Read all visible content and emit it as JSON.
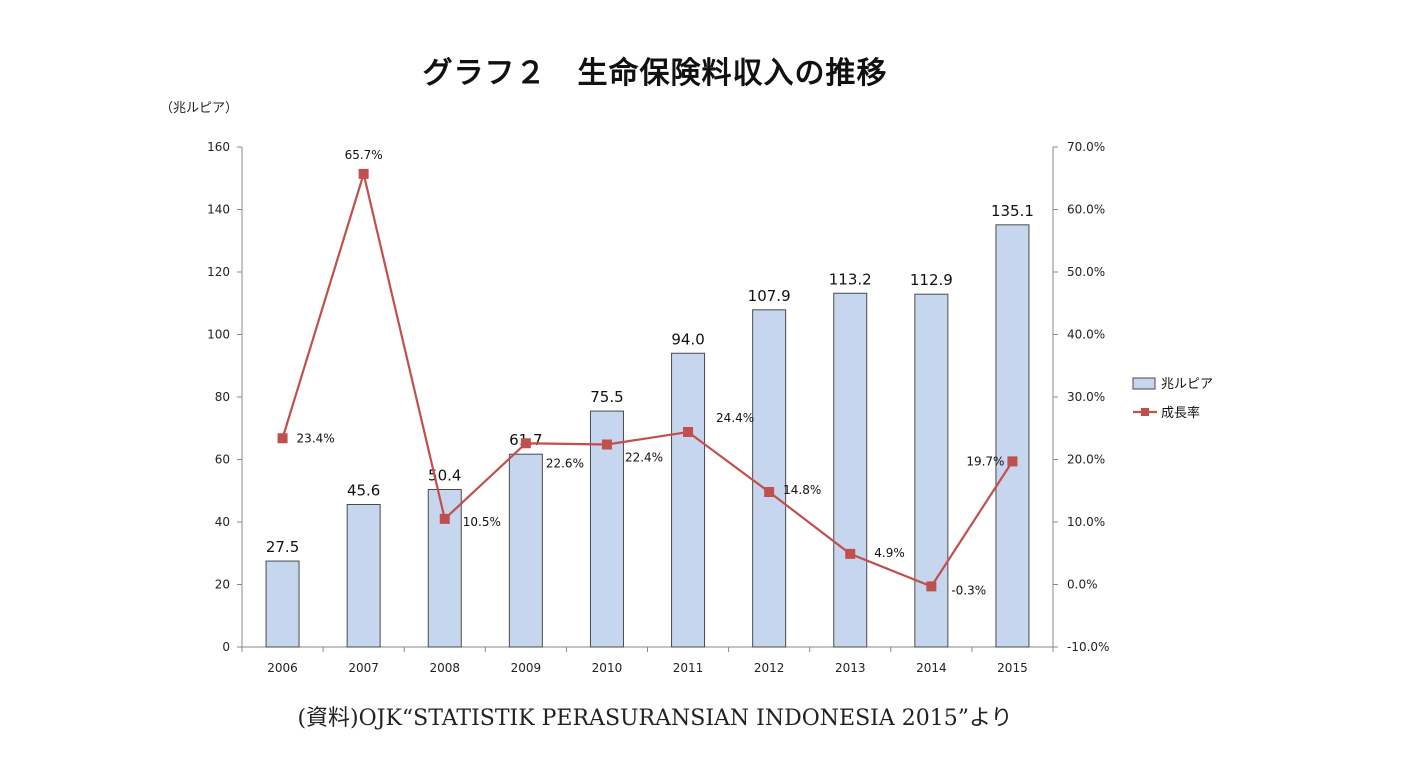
{
  "title": "グラフ２　生命保険料収入の推移",
  "unit_label": "（兆ルピア）",
  "source": "(資料)OJK“STATISTIK PERASURANSIAN INDONESIA 2015”より",
  "chart_data": {
    "type": "bar",
    "categories": [
      "2006",
      "2007",
      "2008",
      "2009",
      "2010",
      "2011",
      "2012",
      "2013",
      "2014",
      "2015"
    ],
    "series": [
      {
        "name": "兆ルピア",
        "type": "bar",
        "axis": "left",
        "color": "#c6d6ef",
        "edge": "#4a4a4a",
        "values": [
          27.5,
          45.6,
          50.4,
          61.7,
          75.5,
          94.0,
          107.9,
          113.2,
          112.9,
          135.1
        ],
        "labels": [
          "27.5",
          "45.6",
          "50.4",
          "61.7",
          "75.5",
          "94.0",
          "107.9",
          "113.2",
          "112.9",
          "135.1"
        ]
      },
      {
        "name": "成長率",
        "type": "line",
        "axis": "right",
        "color": "#c0504d",
        "values": [
          23.4,
          65.7,
          10.5,
          22.6,
          22.4,
          24.4,
          14.8,
          4.9,
          -0.3,
          19.7
        ],
        "labels": [
          "23.4%",
          "65.7%",
          "10.5%",
          "22.6%",
          "22.4%",
          "24.4%",
          "14.8%",
          "4.9%",
          "-0.3%",
          "19.7%"
        ]
      }
    ],
    "y_left": {
      "min": 0,
      "max": 160,
      "ticks": [
        "0",
        "20",
        "40",
        "60",
        "80",
        "100",
        "120",
        "140",
        "160"
      ]
    },
    "y_right": {
      "min": -10,
      "max": 70,
      "ticks": [
        "-10.0%",
        "0.0%",
        "10.0%",
        "20.0%",
        "30.0%",
        "40.0%",
        "50.0%",
        "60.0%",
        "70.0%"
      ]
    },
    "legend_position": "right",
    "grid": false
  }
}
